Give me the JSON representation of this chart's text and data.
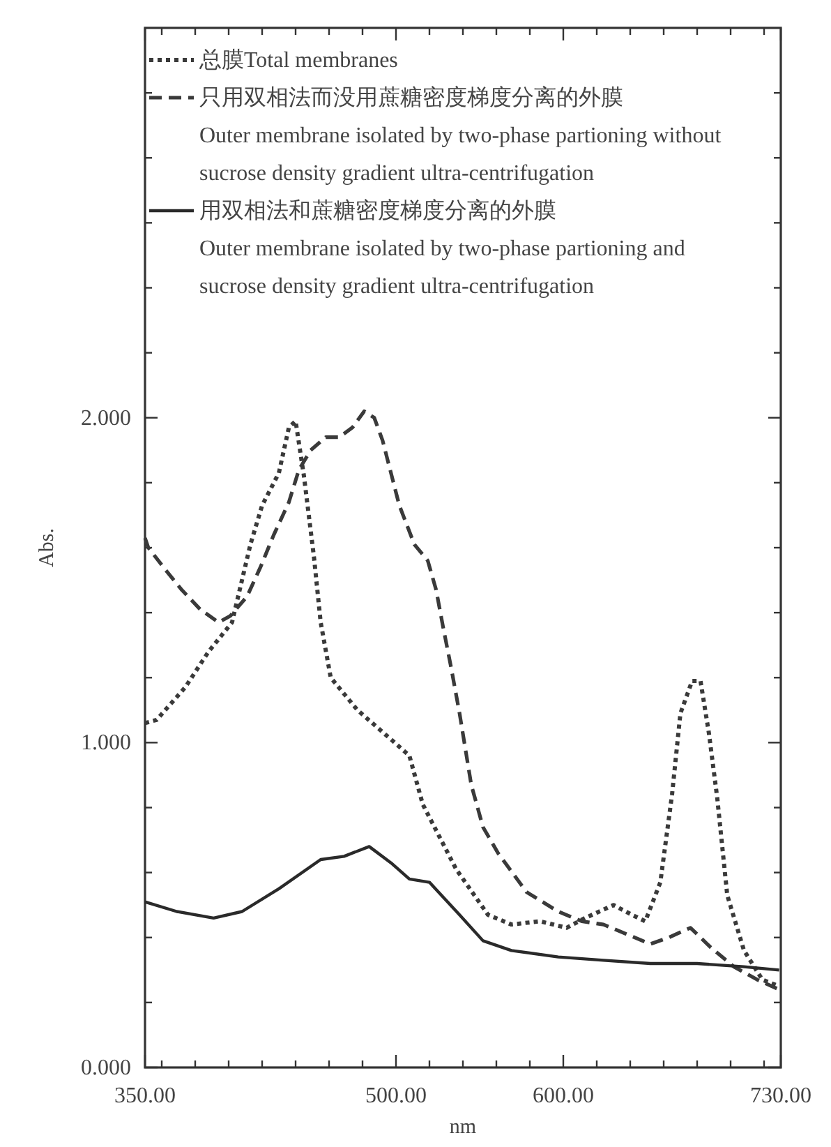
{
  "chart_data": {
    "type": "line",
    "xlabel": "nm",
    "ylabel": "Abs.",
    "xlim": [
      350,
      730
    ],
    "ylim": [
      0,
      3.2
    ],
    "xticks": [
      {
        "value": 350,
        "label": "350.00"
      },
      {
        "value": 360,
        "label": null
      },
      {
        "value": 380,
        "label": null
      },
      {
        "value": 400,
        "label": null
      },
      {
        "value": 420,
        "label": null
      },
      {
        "value": 440,
        "label": null
      },
      {
        "value": 460,
        "label": null
      },
      {
        "value": 480,
        "label": null
      },
      {
        "value": 500,
        "label": "500.00"
      },
      {
        "value": 520,
        "label": null
      },
      {
        "value": 540,
        "label": null
      },
      {
        "value": 560,
        "label": null
      },
      {
        "value": 580,
        "label": null
      },
      {
        "value": 600,
        "label": "600.00"
      },
      {
        "value": 620,
        "label": null
      },
      {
        "value": 640,
        "label": null
      },
      {
        "value": 660,
        "label": null
      },
      {
        "value": 680,
        "label": null
      },
      {
        "value": 700,
        "label": null
      },
      {
        "value": 720,
        "label": null
      },
      {
        "value": 730,
        "label": "730.00"
      }
    ],
    "yticks": [
      {
        "value": 0,
        "label": "0.000"
      },
      {
        "value": 0.2,
        "label": null
      },
      {
        "value": 0.4,
        "label": null
      },
      {
        "value": 0.6,
        "label": null
      },
      {
        "value": 0.8,
        "label": null
      },
      {
        "value": 1,
        "label": "1.000"
      },
      {
        "value": 1.2,
        "label": null
      },
      {
        "value": 1.4,
        "label": null
      },
      {
        "value": 1.6,
        "label": null
      },
      {
        "value": 1.8,
        "label": null
      },
      {
        "value": 2,
        "label": "2.000"
      },
      {
        "value": 2.2,
        "label": null
      },
      {
        "value": 2.4,
        "label": null
      },
      {
        "value": 2.6,
        "label": null
      },
      {
        "value": 2.8,
        "label": null
      },
      {
        "value": 3,
        "label": null
      }
    ],
    "grid": false,
    "legend": "top left",
    "marker": "none",
    "series": [
      {
        "name": "总膜Total membranes",
        "color": "#3a3a3a",
        "line_style": "dotted",
        "x": [
          350,
          357,
          374,
          388,
          402,
          413,
          420,
          430,
          436,
          440,
          445,
          451,
          455,
          461,
          477,
          497,
          508,
          516,
          536,
          555,
          569,
          586,
          602,
          613,
          630,
          641,
          649,
          658,
          665,
          670,
          677,
          682,
          687,
          692,
          698,
          708,
          719,
          729
        ],
        "values": [
          1.06,
          1.07,
          1.17,
          1.28,
          1.37,
          1.61,
          1.73,
          1.83,
          1.97,
          1.99,
          1.82,
          1.57,
          1.37,
          1.2,
          1.1,
          1.01,
          0.96,
          0.81,
          0.61,
          0.47,
          0.44,
          0.45,
          0.43,
          0.46,
          0.5,
          0.47,
          0.45,
          0.57,
          0.84,
          1.09,
          1.19,
          1.19,
          1.03,
          0.83,
          0.53,
          0.36,
          0.27,
          0.25
        ]
      },
      {
        "name": "只用双相法而没用蔗糖密度梯度分离的外膜Outer membrane isolated by two-phase partioning without sucrose density gradient ultra-centrifugation",
        "color": "#3a3a3a",
        "line_style": "dashed",
        "x": [
          350,
          352,
          361,
          372,
          383,
          394,
          401,
          411,
          419,
          427,
          436,
          442,
          449,
          458,
          466,
          474,
          481,
          487,
          492,
          497,
          502,
          511,
          519,
          524,
          528,
          533,
          538,
          545,
          552,
          561,
          578,
          597,
          611,
          624,
          638,
          652,
          663,
          676,
          688,
          702,
          716,
          729
        ],
        "values": [
          1.63,
          1.6,
          1.54,
          1.47,
          1.41,
          1.37,
          1.39,
          1.45,
          1.54,
          1.64,
          1.74,
          1.84,
          1.9,
          1.94,
          1.94,
          1.97,
          2.02,
          2.0,
          1.93,
          1.83,
          1.73,
          1.61,
          1.56,
          1.47,
          1.36,
          1.23,
          1.09,
          0.87,
          0.74,
          0.66,
          0.54,
          0.48,
          0.45,
          0.44,
          0.41,
          0.38,
          0.4,
          0.43,
          0.37,
          0.31,
          0.27,
          0.24
        ]
      },
      {
        "name": "用双相法和蔗糖密度梯度分离的外膜Outer membrane isolated by two-phase partioning and sucrose density gradient ultra-centrifugation",
        "color": "#2a2a2a",
        "line_style": "solid",
        "x": [
          350,
          369,
          391,
          408,
          430,
          455,
          469,
          484,
          497,
          508,
          520,
          538,
          552,
          569,
          597,
          624,
          652,
          680,
          708,
          729
        ],
        "values": [
          0.51,
          0.48,
          0.46,
          0.48,
          0.55,
          0.64,
          0.65,
          0.68,
          0.63,
          0.58,
          0.57,
          0.47,
          0.39,
          0.36,
          0.34,
          0.33,
          0.32,
          0.32,
          0.31,
          0.3
        ]
      }
    ]
  }
}
